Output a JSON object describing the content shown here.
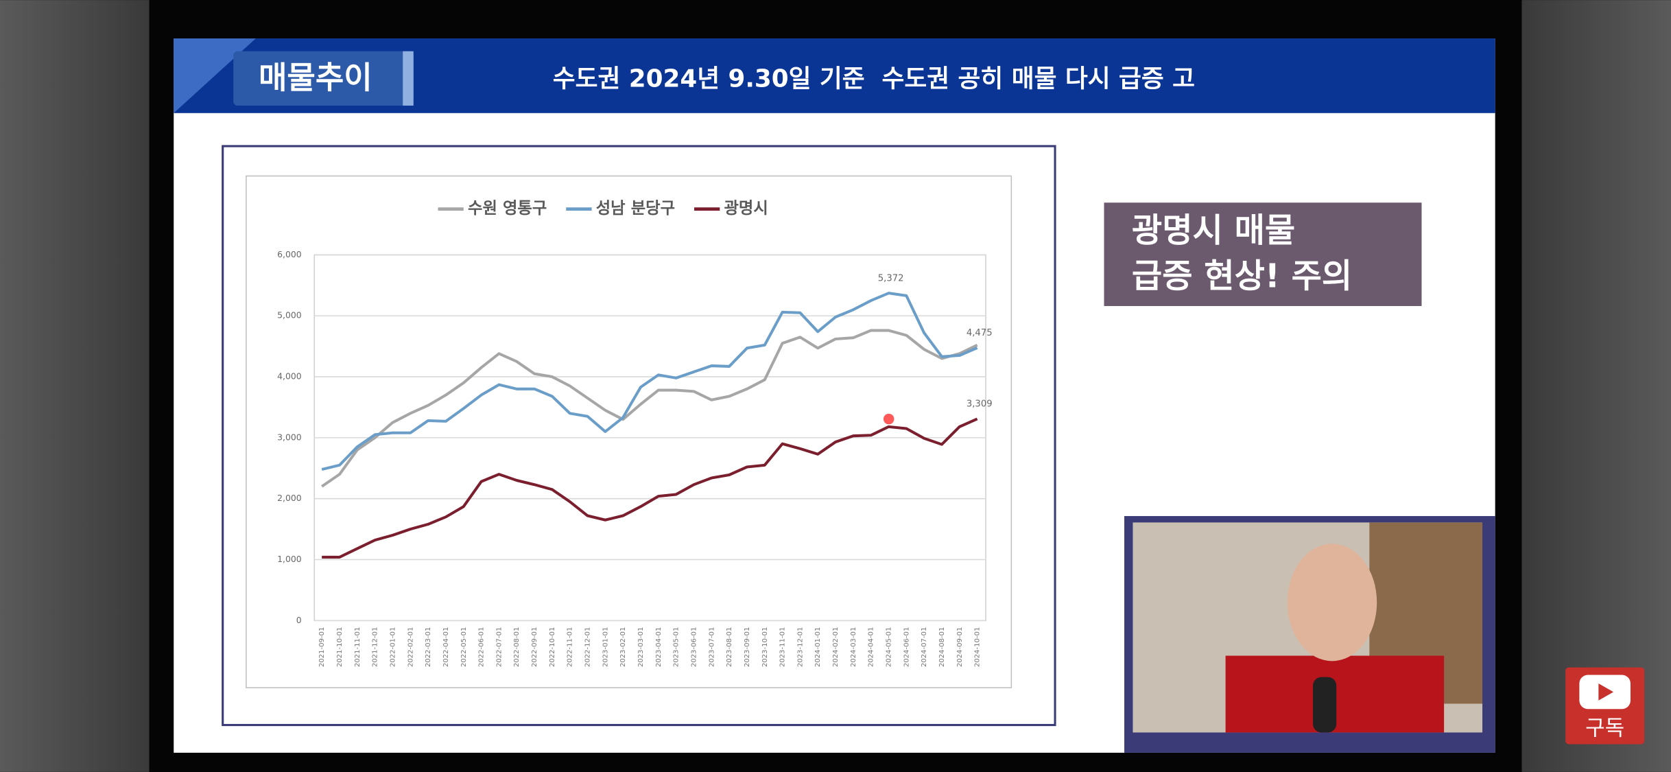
{
  "header": {
    "tag": "매물추이",
    "title": "수도권 2024년 9.30일 기준  수도권 공히 매물 다시 급증 고"
  },
  "callout": {
    "lines": [
      "광명시 매물",
      "급증 현상! 주의"
    ]
  },
  "subscribe": "구독",
  "chart_data": {
    "type": "line",
    "categories": [
      "2021-09-01",
      "2021-10-01",
      "2021-11-01",
      "2021-12-01",
      "2022-01-01",
      "2022-02-01",
      "2022-03-01",
      "2022-04-01",
      "2022-05-01",
      "2022-06-01",
      "2022-07-01",
      "2022-08-01",
      "2022-09-01",
      "2022-10-01",
      "2022-11-01",
      "2022-12-01",
      "2023-01-01",
      "2023-02-01",
      "2023-03-01",
      "2023-04-01",
      "2023-05-01",
      "2023-06-01",
      "2023-07-01",
      "2023-08-01",
      "2023-09-01",
      "2023-10-01",
      "2023-11-01",
      "2023-12-01",
      "2024-01-01",
      "2024-02-01",
      "2024-03-01",
      "2024-04-01",
      "2024-05-01",
      "2024-06-01",
      "2024-07-01",
      "2024-08-01",
      "2024-09-01",
      "2024-10-01"
    ],
    "series": [
      {
        "name": "수원 영통구",
        "color": "#a6a6a6",
        "values": [
          2200,
          2400,
          2800,
          3000,
          3250,
          3400,
          3530,
          3700,
          3900,
          4150,
          4380,
          4250,
          4050,
          4000,
          3850,
          3650,
          3450,
          3300,
          3550,
          3780,
          3780,
          3760,
          3620,
          3680,
          3800,
          3950,
          4550,
          4650,
          4470,
          4620,
          4640,
          4760,
          4760,
          4680,
          4450,
          4300,
          4380,
          4520
        ]
      },
      {
        "name": "성남 분당구",
        "color": "#6a9ec8",
        "values": [
          2480,
          2550,
          2850,
          3050,
          3080,
          3080,
          3280,
          3270,
          3480,
          3700,
          3870,
          3800,
          3800,
          3680,
          3400,
          3350,
          3100,
          3330,
          3830,
          4030,
          3980,
          4080,
          4180,
          4170,
          4470,
          4520,
          5060,
          5050,
          4740,
          4980,
          5100,
          5250,
          5372,
          5330,
          4720,
          4330,
          4350,
          4475
        ],
        "value_labels": [
          null,
          null,
          null,
          null,
          null,
          null,
          null,
          null,
          null,
          null,
          null,
          null,
          null,
          null,
          null,
          null,
          null,
          null,
          null,
          null,
          null,
          null,
          null,
          null,
          null,
          null,
          null,
          null,
          null,
          null,
          null,
          null,
          "5,372",
          null,
          null,
          null,
          null,
          "4,475"
        ]
      },
      {
        "name": "광명시",
        "color": "#7b1e2e",
        "values": [
          1040,
          1040,
          1180,
          1320,
          1400,
          1500,
          1580,
          1700,
          1870,
          2280,
          2400,
          2300,
          2230,
          2150,
          1950,
          1720,
          1650,
          1720,
          1870,
          2040,
          2070,
          2230,
          2340,
          2390,
          2520,
          2550,
          2900,
          2820,
          2730,
          2930,
          3030,
          3040,
          3180,
          3150,
          2990,
          2890,
          3180,
          3309
        ],
        "value_labels": [
          null,
          null,
          null,
          null,
          null,
          null,
          null,
          null,
          null,
          null,
          null,
          null,
          null,
          null,
          null,
          null,
          null,
          null,
          null,
          null,
          null,
          null,
          null,
          null,
          null,
          null,
          null,
          null,
          null,
          null,
          null,
          null,
          null,
          null,
          null,
          null,
          null,
          "3,309"
        ]
      }
    ],
    "ylim": [
      0,
      6000
    ],
    "yticks": [
      0,
      {
        "value": 1000,
        "label": "1,000"
      },
      {
        "value": 2000,
        "label": "2,000"
      },
      {
        "value": 3000,
        "label": "3,000"
      },
      {
        "value": 4000,
        "label": "4,000"
      },
      {
        "value": 5000,
        "label": "5,000"
      },
      {
        "value": 6000,
        "label": "6,000"
      }
    ],
    "grid": true,
    "legend": "top"
  }
}
